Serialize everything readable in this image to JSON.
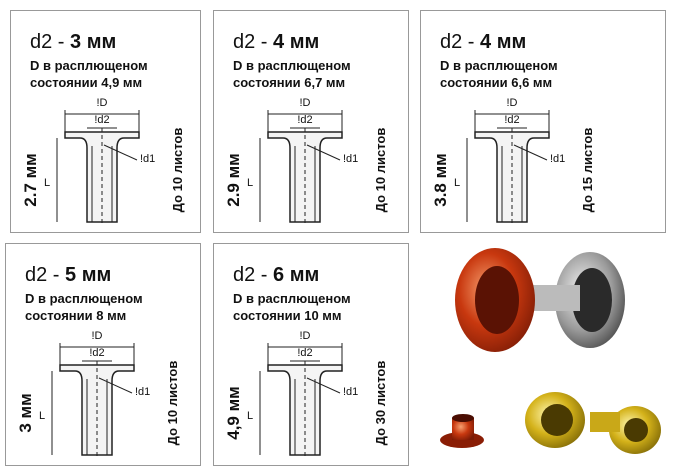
{
  "cards": [
    {
      "prefix": "d2 -",
      "size": "3 мм",
      "line1": "D в расплющеном",
      "line2": "состоянии  4,9 мм",
      "label_D": "!D",
      "label_d2": "!d2",
      "label_d1": "!d1",
      "label_L": "L",
      "height": "2.7 мм",
      "capacity": "До 10 листов"
    },
    {
      "prefix": "d2 -",
      "size": "4 мм",
      "line1": "D в расплющеном",
      "line2": "состоянии  6,7 мм",
      "label_D": "!D",
      "label_d2": "!d2",
      "label_d1": "!d1",
      "label_L": "L",
      "height": "2.9 мм",
      "capacity": "До 10 листов"
    },
    {
      "prefix": "d2 -",
      "size": "4 мм",
      "line1": "D в расплющеном",
      "line2": "состоянии  6,6 мм",
      "label_D": "!D",
      "label_d2": "!d2",
      "label_d1": "!d1",
      "label_L": "L",
      "height": "3.8 мм",
      "capacity": "До 15 листов"
    },
    {
      "prefix": "d2 -",
      "size": "5 мм",
      "line1": "D в расплющеном",
      "line2": "состоянии  8 мм",
      "label_D": "!D",
      "label_d2": "!d2",
      "label_d1": "!d1",
      "label_L": "L",
      "height": "3 мм",
      "capacity": "До 10 листов"
    },
    {
      "prefix": "d2 -",
      "size": "6 мм",
      "line1": "D в расплющеном",
      "line2": "состоянии  10 мм",
      "label_D": "!D",
      "label_d2": "!d2",
      "label_d1": "!d1",
      "label_L": "L",
      "height": "4,9 мм",
      "capacity": "До 30 листов"
    }
  ]
}
